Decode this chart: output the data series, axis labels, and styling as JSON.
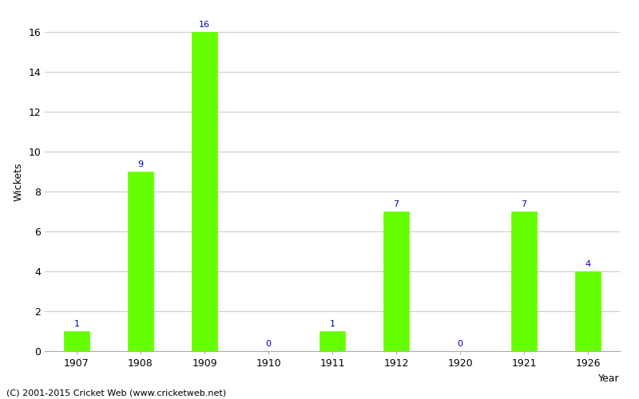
{
  "categories": [
    "1907",
    "1908",
    "1909",
    "1910",
    "1911",
    "1912",
    "1920",
    "1921",
    "1926"
  ],
  "values": [
    1,
    9,
    16,
    0,
    1,
    7,
    0,
    7,
    4
  ],
  "bar_color": "#66ff00",
  "bar_edge_color": "#66ff00",
  "xlabel": "Year",
  "ylabel": "Wickets",
  "ylim": [
    0,
    17
  ],
  "yticks": [
    0,
    2,
    4,
    6,
    8,
    10,
    12,
    14,
    16
  ],
  "label_color": "#0000cc",
  "label_fontsize": 8,
  "background_color": "#ffffff",
  "grid_color": "#cccccc",
  "footer": "(C) 2001-2015 Cricket Web (www.cricketweb.net)",
  "axis_label_fontsize": 9,
  "tick_fontsize": 9,
  "bar_width": 0.4
}
